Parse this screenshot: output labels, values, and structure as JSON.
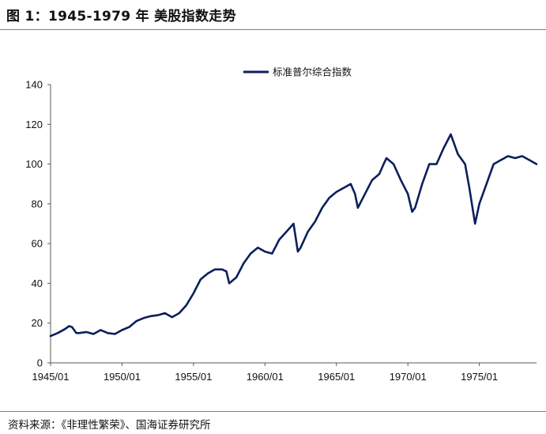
{
  "title": "图 1：1945-1979 年  美股指数走势",
  "source": "资料来源：《非理性繁荣》、国海证券研究所",
  "colors": {
    "series": "#0a1f5c",
    "axis": "#595959"
  },
  "chart_data": {
    "type": "line",
    "ylim": [
      0,
      140
    ],
    "yticks": [
      0,
      20,
      40,
      60,
      80,
      100,
      120,
      140
    ],
    "xlim": [
      1945.0,
      1979.0
    ],
    "xtick_values": [
      1945.0,
      1950.0,
      1955.0,
      1960.0,
      1965.0,
      1970.0,
      1975.0
    ],
    "xtick_labels": [
      "1945/01",
      "1950/01",
      "1955/01",
      "1960/01",
      "1965/01",
      "1970/01",
      "1975/01"
    ],
    "grid": false,
    "legend_position": "top-center",
    "series": [
      {
        "name": "标准普尔综合指数",
        "x": [
          1945.0,
          1945.5,
          1946.0,
          1946.3,
          1946.5,
          1946.8,
          1947.0,
          1947.5,
          1948.0,
          1948.5,
          1949.0,
          1949.5,
          1950.0,
          1950.5,
          1951.0,
          1951.5,
          1952.0,
          1952.5,
          1953.0,
          1953.5,
          1954.0,
          1954.5,
          1955.0,
          1955.5,
          1956.0,
          1956.5,
          1957.0,
          1957.3,
          1957.5,
          1958.0,
          1958.5,
          1959.0,
          1959.5,
          1960.0,
          1960.5,
          1961.0,
          1961.5,
          1962.0,
          1962.3,
          1962.5,
          1963.0,
          1963.5,
          1964.0,
          1964.5,
          1965.0,
          1965.5,
          1966.0,
          1966.3,
          1966.5,
          1967.0,
          1967.5,
          1968.0,
          1968.3,
          1968.5,
          1969.0,
          1969.5,
          1970.0,
          1970.3,
          1970.5,
          1971.0,
          1971.5,
          1972.0,
          1972.5,
          1973.0,
          1973.5,
          1974.0,
          1974.3,
          1974.7,
          1975.0,
          1975.5,
          1976.0,
          1976.5,
          1977.0,
          1977.5,
          1978.0,
          1978.5,
          1979.0
        ],
        "values": [
          13.5,
          15,
          17,
          18.5,
          18,
          15,
          15,
          15.5,
          14.5,
          16.5,
          15,
          14.5,
          16.5,
          18,
          21,
          22.5,
          23.5,
          24,
          25,
          23,
          25,
          29,
          35,
          42,
          45,
          47,
          47,
          46,
          40,
          43,
          50,
          55,
          58,
          56,
          55,
          62,
          66,
          70,
          56,
          58,
          66,
          71,
          78,
          83,
          86,
          88,
          90,
          85,
          78,
          85,
          92,
          95,
          100,
          103,
          100,
          92,
          85,
          76,
          78,
          90,
          100,
          100,
          108,
          115,
          105,
          100,
          88,
          70,
          80,
          90,
          100,
          102,
          104,
          103,
          104,
          102,
          100
        ]
      }
    ]
  }
}
